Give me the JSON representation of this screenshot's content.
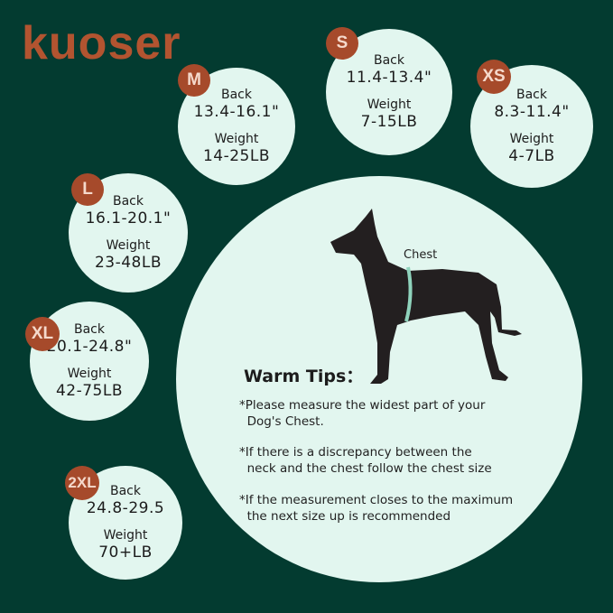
{
  "brand": {
    "logo_text": "kuoser",
    "color": "#b25430"
  },
  "colors": {
    "background": "#033b30",
    "circle": "#e2f6ef",
    "badge": "#a64a2b"
  },
  "sizes": [
    {
      "size": "M",
      "back_label": "Back",
      "back": "13.4-16.1\"",
      "weight_label": "Weight",
      "weight": "14-25LB"
    },
    {
      "size": "S",
      "back_label": "Back",
      "back": "11.4-13.4\"",
      "weight_label": "Weight",
      "weight": "7-15LB"
    },
    {
      "size": "XS",
      "back_label": "Back",
      "back": "8.3-11.4\"",
      "weight_label": "Weight",
      "weight": "4-7LB"
    },
    {
      "size": "L",
      "back_label": "Back",
      "back": "16.1-20.1\"",
      "weight_label": "Weight",
      "weight": "23-48LB"
    },
    {
      "size": "XL",
      "back_label": "Back",
      "back": "20.1-24.8\"",
      "weight_label": "Weight",
      "weight": "42-75LB"
    },
    {
      "size": "2XL",
      "back_label": "Back",
      "back": "24.8-29.5",
      "weight_label": "Weight",
      "weight": "70+LB"
    }
  ],
  "diagram": {
    "chest_label": "Chest",
    "icon": "dog-silhouette"
  },
  "tips": {
    "title": "Warm Tips：",
    "items": [
      "*Please measure the widest part of your\n  Dog's Chest.",
      "*If there is a discrepancy between the\n  neck and the chest follow the chest size",
      "*If the measurement closes to the maximum\n  the next size up is recommended"
    ]
  }
}
